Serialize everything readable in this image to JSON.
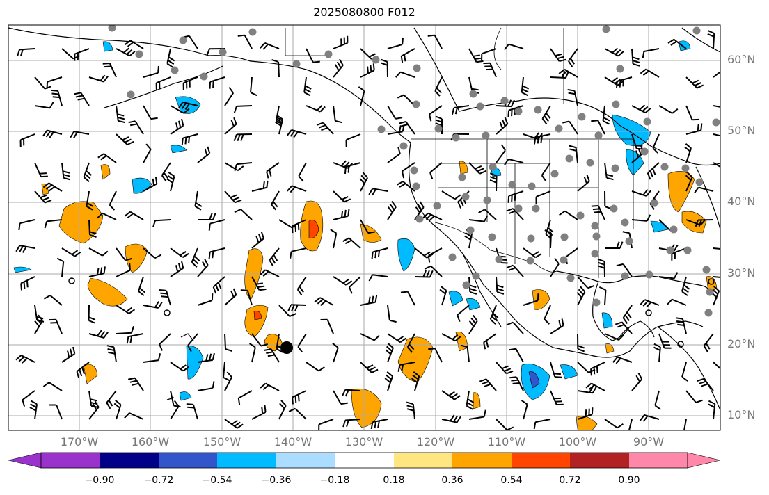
{
  "title": "2025080800 F012",
  "lat_labels": [
    "60°N",
    "50°N",
    "40°N",
    "30°N",
    "20°N",
    "10°N"
  ],
  "lon_labels": [
    "170°W",
    "160°W",
    "150°W",
    "140°W",
    "130°W",
    "120°W",
    "110°W",
    "100°W",
    "90°W"
  ],
  "colorbar": {
    "ticks": [
      "−0.90",
      "−0.72",
      "−0.54",
      "−0.36",
      "−0.18",
      "0.18",
      "0.36",
      "0.54",
      "0.72",
      "0.90"
    ],
    "colors": [
      "#9933cc",
      "#000088",
      "#3355cc",
      "#00bbff",
      "#aaddff",
      "#ffffff",
      "#ffe680",
      "#ffa500",
      "#ff4500",
      "#b22222",
      "#ff88aa"
    ]
  },
  "map": {
    "lon_range": [
      -180,
      -80
    ],
    "lat_range": [
      7,
      65
    ],
    "gridlines": true
  }
}
